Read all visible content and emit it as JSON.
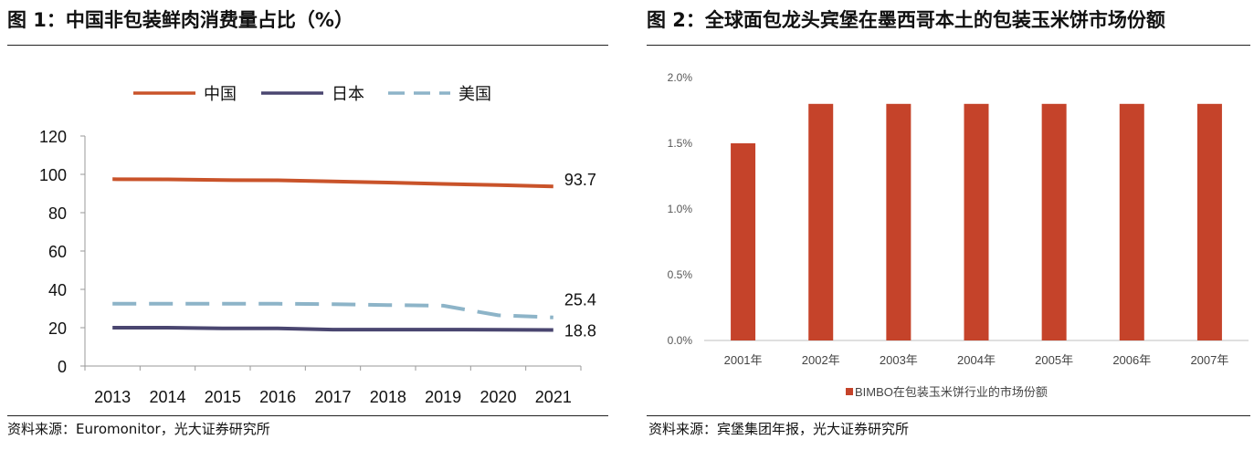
{
  "figure1": {
    "title": "图 1：中国非包装鲜肉消费量占比（%）",
    "source": "资料来源：Euromonitor，光大证券研究所",
    "chart_data": {
      "type": "line",
      "title": "中国非包装鲜肉消费量占比（%）",
      "xlabel": "",
      "ylabel": "",
      "categories": [
        "2013",
        "2014",
        "2015",
        "2016",
        "2017",
        "2018",
        "2019",
        "2020",
        "2021"
      ],
      "ylim": [
        0,
        120
      ],
      "yticks": [
        "0",
        "20",
        "40",
        "60",
        "80",
        "100",
        "120"
      ],
      "legend_position": "top",
      "series": [
        {
          "name": "中国",
          "color": "#C9532A",
          "style": "solid",
          "values": [
            97.5,
            97.4,
            97.0,
            96.9,
            96.3,
            95.7,
            95.0,
            94.4,
            93.7
          ],
          "end_label": "93.7"
        },
        {
          "name": "日本",
          "color": "#4A4670",
          "style": "solid",
          "values": [
            20.0,
            20.0,
            19.6,
            19.6,
            19.0,
            19.0,
            19.0,
            18.9,
            18.8
          ],
          "end_label": "18.8"
        },
        {
          "name": "美国",
          "color": "#8DB4C8",
          "style": "dashed",
          "values": [
            32.5,
            32.5,
            32.5,
            32.5,
            32.3,
            31.8,
            31.5,
            26.5,
            25.4
          ],
          "end_label": "25.4"
        }
      ]
    }
  },
  "figure2": {
    "title": "图 2：全球面包龙头宾堡在墨西哥本土的包装玉米饼市场份额",
    "source": "资料来源：宾堡集团年报，光大证券研究所",
    "chart_data": {
      "type": "bar",
      "title": "全球面包龙头宾堡在墨西哥本土的包装玉米饼市场份额",
      "xlabel": "",
      "ylabel": "",
      "categories": [
        "2001年",
        "2002年",
        "2003年",
        "2004年",
        "2005年",
        "2006年",
        "2007年"
      ],
      "ylim": [
        0,
        2.0
      ],
      "yticks": [
        "0.0%",
        "0.5%",
        "1.0%",
        "1.5%",
        "2.0%"
      ],
      "legend_position": "bottom",
      "series": [
        {
          "name": "BIMBO在包装玉米饼行业的市场份额",
          "color": "#C5432A",
          "values": [
            1.5,
            1.8,
            1.8,
            1.8,
            1.8,
            1.8,
            1.8
          ]
        }
      ]
    }
  }
}
